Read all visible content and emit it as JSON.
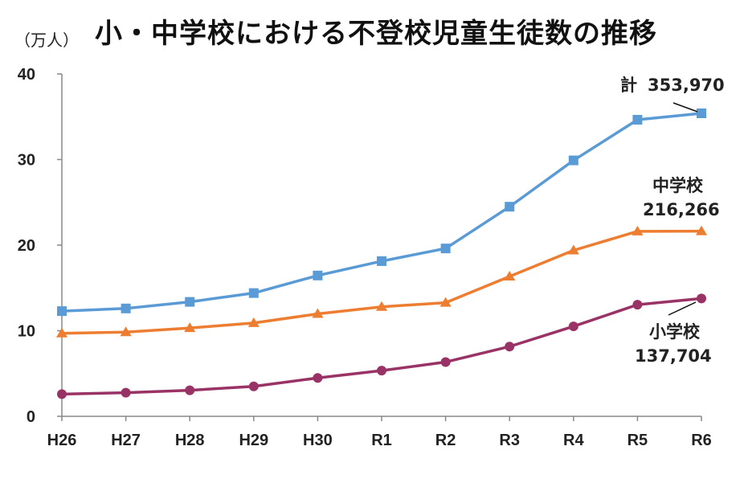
{
  "chart_data": {
    "type": "line",
    "title": "小・中学校における不登校児童生徒数の推移",
    "ylabel": "（万人）",
    "xlabel": "",
    "ylim": [
      0,
      40
    ],
    "yticks": [
      "0",
      "10",
      "20",
      "30",
      "40"
    ],
    "categories": [
      "H26",
      "H27",
      "H28",
      "H29",
      "H30",
      "R1",
      "R2",
      "R3",
      "R4",
      "R5",
      "R6"
    ],
    "grid": false,
    "series": [
      {
        "name": "計",
        "color": "#5b9bd5",
        "marker": "square",
        "values": [
          12.29,
          12.6,
          13.37,
          14.4,
          16.45,
          18.13,
          19.61,
          24.49,
          29.9,
          34.65,
          35.4
        ]
      },
      {
        "name": "中学校",
        "color": "#ed7d31",
        "marker": "triangle",
        "values": [
          9.7,
          9.84,
          10.32,
          10.9,
          11.97,
          12.79,
          13.28,
          16.34,
          19.39,
          21.61,
          21.63
        ]
      },
      {
        "name": "小学校",
        "color": "#993366",
        "marker": "circle",
        "values": [
          2.59,
          2.76,
          3.04,
          3.5,
          4.48,
          5.34,
          6.34,
          8.15,
          10.51,
          13.04,
          13.77
        ]
      }
    ],
    "annotations": {
      "total": {
        "name": "計",
        "value": "353,970"
      },
      "junior": {
        "name": "中学校",
        "value": "216,266"
      },
      "elementary": {
        "name": "小学校",
        "value": "137,704"
      }
    }
  }
}
